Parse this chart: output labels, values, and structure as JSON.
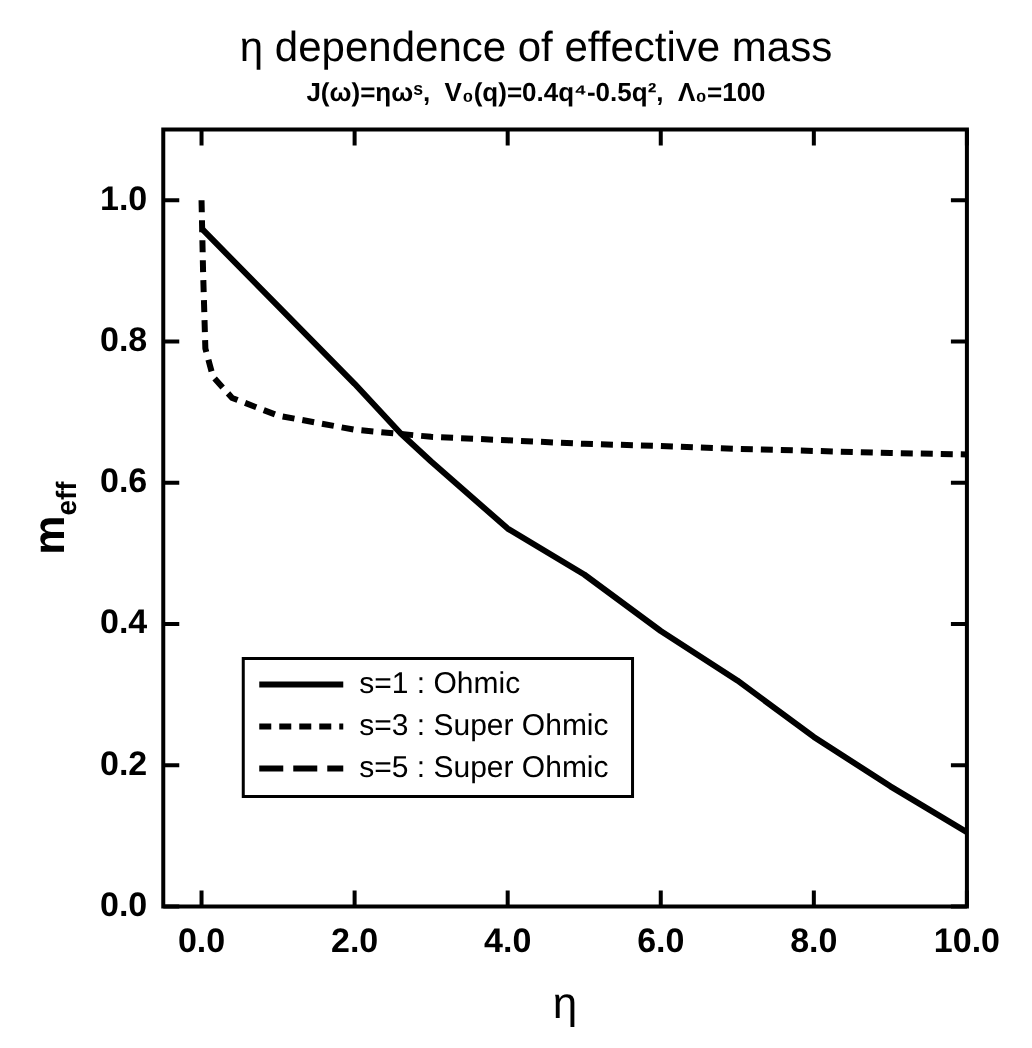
{
  "chart_data": {
    "type": "line",
    "title": "η dependence of effective mass",
    "subtitle": "J(ω)=ηωˢ,  V₀(q)=0.4q⁴-0.5q²,  Λ₀=100",
    "xlabel": "η",
    "ylabel": "m$_{eff}$",
    "xlim": [
      -0.5,
      10.0
    ],
    "ylim": [
      0,
      1.1
    ],
    "xticks": [
      {
        "value": 0,
        "label": "0.0"
      },
      {
        "value": 2,
        "label": "2.0"
      },
      {
        "value": 4,
        "label": "4.0"
      },
      {
        "value": 6,
        "label": "6.0"
      },
      {
        "value": 8,
        "label": "8.0"
      },
      {
        "value": 10,
        "label": "10.0"
      }
    ],
    "yticks": [
      {
        "value": 0,
        "label": "0.0"
      },
      {
        "value": 0.2,
        "label": "0.2"
      },
      {
        "value": 0.4,
        "label": "0.4"
      },
      {
        "value": 0.6,
        "label": "0.6"
      },
      {
        "value": 0.8,
        "label": "0.8"
      },
      {
        "value": 1.0,
        "label": "1.0"
      }
    ],
    "grid": false,
    "legend": "bottom left",
    "marker": "none",
    "series": [
      {
        "name": "s=1 : Ohmic",
        "color": "#000000",
        "line_style": "solid",
        "x": [
          0,
          1,
          2,
          2.6,
          3,
          4,
          5,
          6,
          7,
          8,
          9,
          10
        ],
        "values": [
          0.96,
          0.85,
          0.74,
          0.67,
          0.63,
          0.535,
          0.47,
          0.39,
          0.32,
          0.24,
          0.17,
          0.105
        ]
      },
      {
        "name": "s=3 : Super Ohmic",
        "color": "#000000",
        "line_style": "dashed",
        "x": [
          0,
          0.02,
          0.05,
          0.15,
          0.4,
          1,
          1.5,
          2,
          3,
          4,
          5,
          6,
          7,
          8,
          9,
          10
        ],
        "values": [
          1.0,
          0.9,
          0.79,
          0.75,
          0.72,
          0.695,
          0.685,
          0.675,
          0.665,
          0.66,
          0.655,
          0.652,
          0.648,
          0.645,
          0.642,
          0.64
        ]
      },
      {
        "name": "s=5 : Super Ohmic",
        "color": "#000000",
        "line_style": "longdash"
      }
    ]
  }
}
